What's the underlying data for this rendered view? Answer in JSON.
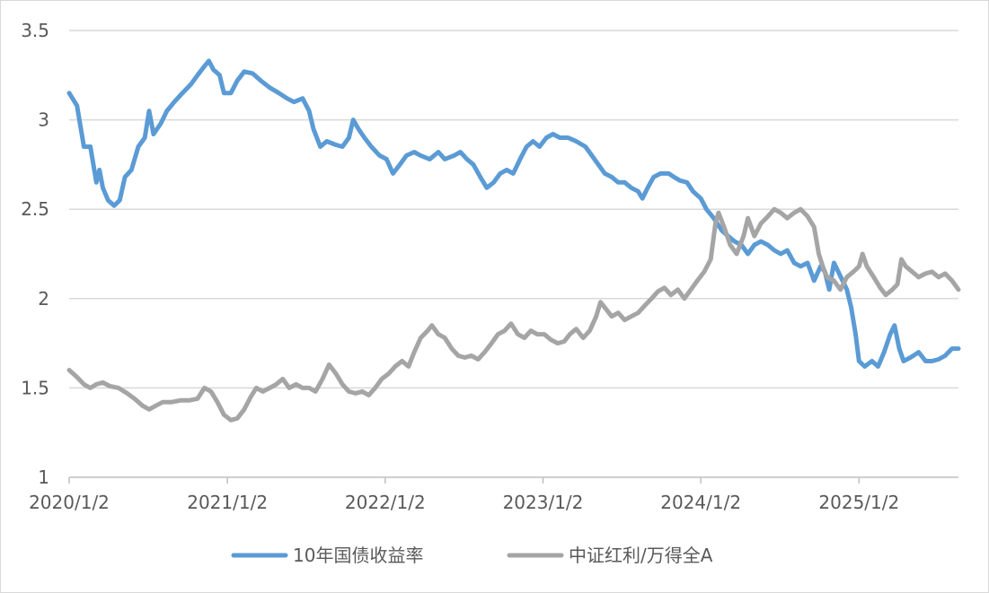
{
  "chart_data": {
    "type": "line",
    "title": "",
    "xlabel": "",
    "ylabel": "",
    "ylim": [
      1,
      3.5
    ],
    "yticks": [
      1,
      1.5,
      2,
      2.5,
      3,
      3.5
    ],
    "ytick_labels": [
      "1",
      "1.5",
      "2",
      "2.5",
      "3",
      "3.5"
    ],
    "xlim": [
      "2020-01-02",
      "2025-08-20"
    ],
    "xticks": [
      "2020-01-02",
      "2021-01-02",
      "2022-01-02",
      "2023-01-02",
      "2024-01-02",
      "2025-01-02"
    ],
    "xtick_labels": [
      "2020/1/2",
      "2021/1/2",
      "2022/1/2",
      "2023/1/2",
      "2024/1/2",
      "2025/1/2"
    ],
    "grid": "horizontal",
    "legend_position": "bottom-center",
    "series": [
      {
        "name": "10年国债收益率",
        "color": "#5b9bd5",
        "points": [
          [
            "2020-01-02",
            3.15
          ],
          [
            "2020-01-20",
            3.08
          ],
          [
            "2020-02-05",
            2.85
          ],
          [
            "2020-02-20",
            2.85
          ],
          [
            "2020-03-05",
            2.65
          ],
          [
            "2020-03-12",
            2.72
          ],
          [
            "2020-03-20",
            2.62
          ],
          [
            "2020-04-01",
            2.55
          ],
          [
            "2020-04-15",
            2.52
          ],
          [
            "2020-04-28",
            2.55
          ],
          [
            "2020-05-10",
            2.68
          ],
          [
            "2020-05-25",
            2.72
          ],
          [
            "2020-06-10",
            2.85
          ],
          [
            "2020-06-25",
            2.9
          ],
          [
            "2020-07-05",
            3.05
          ],
          [
            "2020-07-15",
            2.92
          ],
          [
            "2020-08-01",
            2.98
          ],
          [
            "2020-08-15",
            3.05
          ],
          [
            "2020-09-01",
            3.1
          ],
          [
            "2020-09-20",
            3.15
          ],
          [
            "2020-10-10",
            3.2
          ],
          [
            "2020-10-25",
            3.25
          ],
          [
            "2020-11-10",
            3.3
          ],
          [
            "2020-11-20",
            3.33
          ],
          [
            "2020-12-01",
            3.28
          ],
          [
            "2020-12-15",
            3.25
          ],
          [
            "2020-12-25",
            3.15
          ],
          [
            "2021-01-10",
            3.15
          ],
          [
            "2021-01-25",
            3.22
          ],
          [
            "2021-02-10",
            3.27
          ],
          [
            "2021-03-01",
            3.26
          ],
          [
            "2021-03-20",
            3.22
          ],
          [
            "2021-04-10",
            3.18
          ],
          [
            "2021-05-01",
            3.15
          ],
          [
            "2021-05-20",
            3.12
          ],
          [
            "2021-06-05",
            3.1
          ],
          [
            "2021-06-25",
            3.12
          ],
          [
            "2021-07-10",
            3.05
          ],
          [
            "2021-07-20",
            2.95
          ],
          [
            "2021-08-05",
            2.85
          ],
          [
            "2021-08-20",
            2.88
          ],
          [
            "2021-09-10",
            2.86
          ],
          [
            "2021-09-25",
            2.85
          ],
          [
            "2021-10-10",
            2.9
          ],
          [
            "2021-10-20",
            3.0
          ],
          [
            "2021-11-01",
            2.95
          ],
          [
            "2021-11-15",
            2.9
          ],
          [
            "2021-12-01",
            2.85
          ],
          [
            "2021-12-20",
            2.8
          ],
          [
            "2022-01-05",
            2.78
          ],
          [
            "2022-01-20",
            2.7
          ],
          [
            "2022-02-05",
            2.75
          ],
          [
            "2022-02-20",
            2.8
          ],
          [
            "2022-03-10",
            2.82
          ],
          [
            "2022-03-25",
            2.8
          ],
          [
            "2022-04-15",
            2.78
          ],
          [
            "2022-05-05",
            2.82
          ],
          [
            "2022-05-20",
            2.78
          ],
          [
            "2022-06-10",
            2.8
          ],
          [
            "2022-06-25",
            2.82
          ],
          [
            "2022-07-10",
            2.78
          ],
          [
            "2022-07-25",
            2.75
          ],
          [
            "2022-08-10",
            2.68
          ],
          [
            "2022-08-25",
            2.62
          ],
          [
            "2022-09-10",
            2.65
          ],
          [
            "2022-09-25",
            2.7
          ],
          [
            "2022-10-10",
            2.72
          ],
          [
            "2022-10-25",
            2.7
          ],
          [
            "2022-11-10",
            2.78
          ],
          [
            "2022-11-25",
            2.85
          ],
          [
            "2022-12-10",
            2.88
          ],
          [
            "2022-12-25",
            2.85
          ],
          [
            "2023-01-10",
            2.9
          ],
          [
            "2023-01-25",
            2.92
          ],
          [
            "2023-02-10",
            2.9
          ],
          [
            "2023-03-01",
            2.9
          ],
          [
            "2023-03-20",
            2.88
          ],
          [
            "2023-04-10",
            2.85
          ],
          [
            "2023-04-25",
            2.8
          ],
          [
            "2023-05-10",
            2.75
          ],
          [
            "2023-05-25",
            2.7
          ],
          [
            "2023-06-10",
            2.68
          ],
          [
            "2023-06-25",
            2.65
          ],
          [
            "2023-07-10",
            2.65
          ],
          [
            "2023-07-25",
            2.62
          ],
          [
            "2023-08-10",
            2.6
          ],
          [
            "2023-08-20",
            2.56
          ],
          [
            "2023-09-01",
            2.62
          ],
          [
            "2023-09-15",
            2.68
          ],
          [
            "2023-10-01",
            2.7
          ],
          [
            "2023-10-20",
            2.7
          ],
          [
            "2023-11-01",
            2.68
          ],
          [
            "2023-11-15",
            2.66
          ],
          [
            "2023-12-01",
            2.65
          ],
          [
            "2023-12-15",
            2.6
          ],
          [
            "2024-01-02",
            2.56
          ],
          [
            "2024-01-15",
            2.5
          ],
          [
            "2024-02-01",
            2.45
          ],
          [
            "2024-02-20",
            2.38
          ],
          [
            "2024-03-05",
            2.35
          ],
          [
            "2024-03-20",
            2.32
          ],
          [
            "2024-04-05",
            2.3
          ],
          [
            "2024-04-20",
            2.25
          ],
          [
            "2024-05-05",
            2.3
          ],
          [
            "2024-05-20",
            2.32
          ],
          [
            "2024-06-05",
            2.3
          ],
          [
            "2024-06-20",
            2.27
          ],
          [
            "2024-07-05",
            2.25
          ],
          [
            "2024-07-20",
            2.27
          ],
          [
            "2024-08-05",
            2.2
          ],
          [
            "2024-08-20",
            2.18
          ],
          [
            "2024-09-05",
            2.2
          ],
          [
            "2024-09-20",
            2.1
          ],
          [
            "2024-10-05",
            2.18
          ],
          [
            "2024-10-15",
            2.15
          ],
          [
            "2024-10-25",
            2.05
          ],
          [
            "2024-11-05",
            2.2
          ],
          [
            "2024-11-15",
            2.15
          ],
          [
            "2024-11-25",
            2.1
          ],
          [
            "2024-12-05",
            2.05
          ],
          [
            "2024-12-15",
            1.95
          ],
          [
            "2024-12-25",
            1.8
          ],
          [
            "2025-01-02",
            1.65
          ],
          [
            "2025-01-15",
            1.62
          ],
          [
            "2025-02-01",
            1.65
          ],
          [
            "2025-02-15",
            1.62
          ],
          [
            "2025-03-01",
            1.7
          ],
          [
            "2025-03-15",
            1.8
          ],
          [
            "2025-03-25",
            1.85
          ],
          [
            "2025-04-05",
            1.72
          ],
          [
            "2025-04-15",
            1.65
          ],
          [
            "2025-05-01",
            1.67
          ],
          [
            "2025-05-20",
            1.7
          ],
          [
            "2025-06-05",
            1.65
          ],
          [
            "2025-06-20",
            1.65
          ],
          [
            "2025-07-05",
            1.66
          ],
          [
            "2025-07-20",
            1.68
          ],
          [
            "2025-08-05",
            1.72
          ],
          [
            "2025-08-20",
            1.72
          ]
        ]
      },
      {
        "name": "中证红利/万得全A",
        "color": "#a5a5a5",
        "points": [
          [
            "2020-01-02",
            1.6
          ],
          [
            "2020-01-20",
            1.56
          ],
          [
            "2020-02-05",
            1.52
          ],
          [
            "2020-02-20",
            1.5
          ],
          [
            "2020-03-05",
            1.52
          ],
          [
            "2020-03-20",
            1.53
          ],
          [
            "2020-04-05",
            1.51
          ],
          [
            "2020-04-25",
            1.5
          ],
          [
            "2020-05-15",
            1.47
          ],
          [
            "2020-06-01",
            1.44
          ],
          [
            "2020-06-20",
            1.4
          ],
          [
            "2020-07-05",
            1.38
          ],
          [
            "2020-07-20",
            1.4
          ],
          [
            "2020-08-05",
            1.42
          ],
          [
            "2020-08-25",
            1.42
          ],
          [
            "2020-09-15",
            1.43
          ],
          [
            "2020-10-05",
            1.43
          ],
          [
            "2020-10-25",
            1.44
          ],
          [
            "2020-11-10",
            1.5
          ],
          [
            "2020-11-25",
            1.48
          ],
          [
            "2020-12-10",
            1.42
          ],
          [
            "2020-12-25",
            1.35
          ],
          [
            "2021-01-10",
            1.32
          ],
          [
            "2021-01-25",
            1.33
          ],
          [
            "2021-02-10",
            1.38
          ],
          [
            "2021-02-25",
            1.45
          ],
          [
            "2021-03-10",
            1.5
          ],
          [
            "2021-03-25",
            1.48
          ],
          [
            "2021-04-10",
            1.5
          ],
          [
            "2021-04-25",
            1.52
          ],
          [
            "2021-05-10",
            1.55
          ],
          [
            "2021-05-25",
            1.5
          ],
          [
            "2021-06-10",
            1.52
          ],
          [
            "2021-06-25",
            1.5
          ],
          [
            "2021-07-10",
            1.5
          ],
          [
            "2021-07-25",
            1.48
          ],
          [
            "2021-08-10",
            1.55
          ],
          [
            "2021-08-25",
            1.63
          ],
          [
            "2021-09-10",
            1.58
          ],
          [
            "2021-09-25",
            1.52
          ],
          [
            "2021-10-10",
            1.48
          ],
          [
            "2021-10-25",
            1.47
          ],
          [
            "2021-11-10",
            1.48
          ],
          [
            "2021-11-25",
            1.46
          ],
          [
            "2021-12-10",
            1.5
          ],
          [
            "2021-12-25",
            1.55
          ],
          [
            "2022-01-10",
            1.58
          ],
          [
            "2022-01-25",
            1.62
          ],
          [
            "2022-02-10",
            1.65
          ],
          [
            "2022-02-25",
            1.62
          ],
          [
            "2022-03-10",
            1.7
          ],
          [
            "2022-03-25",
            1.78
          ],
          [
            "2022-04-10",
            1.82
          ],
          [
            "2022-04-20",
            1.85
          ],
          [
            "2022-05-05",
            1.8
          ],
          [
            "2022-05-20",
            1.78
          ],
          [
            "2022-06-05",
            1.72
          ],
          [
            "2022-06-20",
            1.68
          ],
          [
            "2022-07-05",
            1.67
          ],
          [
            "2022-07-20",
            1.68
          ],
          [
            "2022-08-05",
            1.66
          ],
          [
            "2022-08-20",
            1.7
          ],
          [
            "2022-09-05",
            1.75
          ],
          [
            "2022-09-20",
            1.8
          ],
          [
            "2022-10-05",
            1.82
          ],
          [
            "2022-10-20",
            1.86
          ],
          [
            "2022-11-05",
            1.8
          ],
          [
            "2022-11-20",
            1.78
          ],
          [
            "2022-12-05",
            1.82
          ],
          [
            "2022-12-20",
            1.8
          ],
          [
            "2023-01-05",
            1.8
          ],
          [
            "2023-01-20",
            1.77
          ],
          [
            "2023-02-05",
            1.75
          ],
          [
            "2023-02-20",
            1.76
          ],
          [
            "2023-03-05",
            1.8
          ],
          [
            "2023-03-20",
            1.83
          ],
          [
            "2023-04-05",
            1.78
          ],
          [
            "2023-04-20",
            1.82
          ],
          [
            "2023-05-05",
            1.9
          ],
          [
            "2023-05-15",
            1.98
          ],
          [
            "2023-05-25",
            1.95
          ],
          [
            "2023-06-10",
            1.9
          ],
          [
            "2023-06-25",
            1.92
          ],
          [
            "2023-07-10",
            1.88
          ],
          [
            "2023-07-25",
            1.9
          ],
          [
            "2023-08-10",
            1.92
          ],
          [
            "2023-08-25",
            1.96
          ],
          [
            "2023-09-10",
            2.0
          ],
          [
            "2023-09-25",
            2.04
          ],
          [
            "2023-10-10",
            2.06
          ],
          [
            "2023-10-25",
            2.02
          ],
          [
            "2023-11-10",
            2.05
          ],
          [
            "2023-11-25",
            2.0
          ],
          [
            "2023-12-10",
            2.05
          ],
          [
            "2023-12-25",
            2.1
          ],
          [
            "2024-01-10",
            2.15
          ],
          [
            "2024-01-25",
            2.22
          ],
          [
            "2024-02-05",
            2.42
          ],
          [
            "2024-02-12",
            2.48
          ],
          [
            "2024-02-25",
            2.4
          ],
          [
            "2024-03-10",
            2.3
          ],
          [
            "2024-03-25",
            2.25
          ],
          [
            "2024-04-10",
            2.35
          ],
          [
            "2024-04-20",
            2.45
          ],
          [
            "2024-05-05",
            2.35
          ],
          [
            "2024-05-20",
            2.42
          ],
          [
            "2024-06-05",
            2.46
          ],
          [
            "2024-06-20",
            2.5
          ],
          [
            "2024-07-05",
            2.48
          ],
          [
            "2024-07-20",
            2.45
          ],
          [
            "2024-08-05",
            2.48
          ],
          [
            "2024-08-20",
            2.5
          ],
          [
            "2024-09-05",
            2.46
          ],
          [
            "2024-09-20",
            2.4
          ],
          [
            "2024-10-01",
            2.25
          ],
          [
            "2024-10-10",
            2.18
          ],
          [
            "2024-10-20",
            2.12
          ],
          [
            "2024-11-05",
            2.1
          ],
          [
            "2024-11-20",
            2.05
          ],
          [
            "2024-12-05",
            2.12
          ],
          [
            "2024-12-20",
            2.15
          ],
          [
            "2025-01-02",
            2.18
          ],
          [
            "2025-01-10",
            2.25
          ],
          [
            "2025-01-20",
            2.18
          ],
          [
            "2025-02-05",
            2.12
          ],
          [
            "2025-02-20",
            2.06
          ],
          [
            "2025-03-05",
            2.02
          ],
          [
            "2025-03-20",
            2.05
          ],
          [
            "2025-04-01",
            2.08
          ],
          [
            "2025-04-10",
            2.22
          ],
          [
            "2025-04-20",
            2.18
          ],
          [
            "2025-05-05",
            2.15
          ],
          [
            "2025-05-20",
            2.12
          ],
          [
            "2025-06-05",
            2.14
          ],
          [
            "2025-06-20",
            2.15
          ],
          [
            "2025-07-05",
            2.12
          ],
          [
            "2025-07-20",
            2.14
          ],
          [
            "2025-08-05",
            2.1
          ],
          [
            "2025-08-20",
            2.05
          ]
        ]
      }
    ]
  }
}
